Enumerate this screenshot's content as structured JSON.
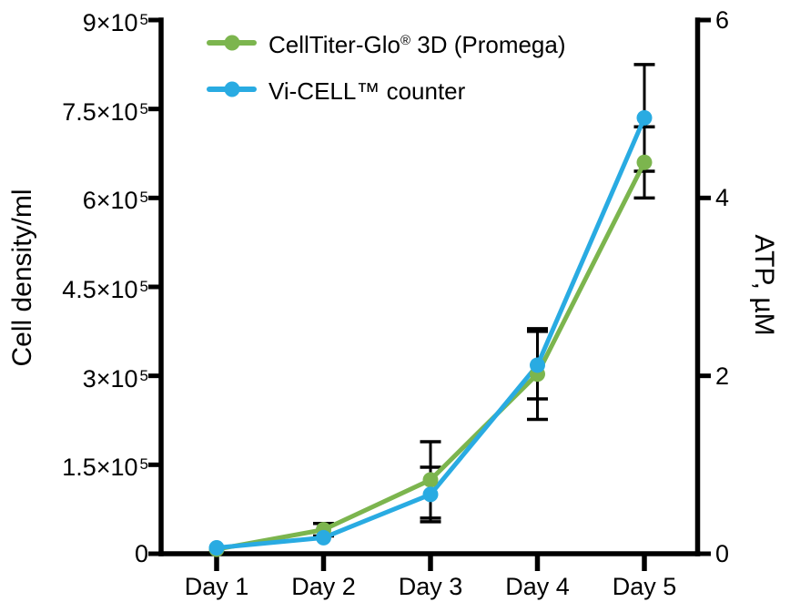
{
  "figure": {
    "background_color": "#ffffff",
    "text_color": "#000000"
  },
  "legend": {
    "items": [
      {
        "label_prefix": "CellTiter-Glo",
        "label_sup": "®",
        "label_suffix": " 3D (Promega)",
        "color": "#7CB54E"
      },
      {
        "label_prefix": "Vi-CELL™ counter",
        "label_sup": "",
        "label_suffix": "",
        "color": "#29ABE2"
      }
    ]
  },
  "chart_data": {
    "type": "line",
    "categories": [
      "Day 1",
      "Day 2",
      "Day 3",
      "Day 4",
      "Day 5"
    ],
    "left_axis": {
      "label": "Cell density/ml",
      "min": 0,
      "max": 900000,
      "ticks": [
        {
          "mantissa": "9×10",
          "exp": "5",
          "value": 900000
        },
        {
          "mantissa": "7.5×10",
          "exp": "5",
          "value": 750000
        },
        {
          "mantissa": "6×10",
          "exp": "5",
          "value": 600000
        },
        {
          "mantissa": "4.5×10",
          "exp": "5",
          "value": 450000
        },
        {
          "mantissa": "3×10",
          "exp": "5",
          "value": 300000
        },
        {
          "mantissa": "1.5×10",
          "exp": "5",
          "value": 150000
        },
        {
          "mantissa": "0",
          "exp": "",
          "value": 0
        }
      ]
    },
    "right_axis": {
      "label": "ATP, µM",
      "min": 0,
      "max": 6,
      "ticks": [
        {
          "label": "6",
          "value": 6
        },
        {
          "label": "4",
          "value": 4
        },
        {
          "label": "2",
          "value": 2
        },
        {
          "label": "0",
          "value": 0
        }
      ]
    },
    "series": [
      {
        "name": "CellTiter-Glo® 3D (Promega)",
        "axis": "right",
        "unit": "µM",
        "color": "#7CB54E",
        "values": [
          0.05,
          0.27,
          0.83,
          2.02,
          4.4
        ],
        "errors": [
          0,
          0.07,
          0.43,
          0.51,
          0.4
        ]
      },
      {
        "name": "Vi-CELL™ counter",
        "axis": "left",
        "unit": "cells/ml",
        "color": "#29ABE2",
        "values": [
          10000,
          27000,
          100000,
          318000,
          735000
        ],
        "errors": [
          0,
          0,
          46000,
          57000,
          90000
        ]
      }
    ],
    "error_bar_color": "#000000",
    "grid": false,
    "legend_position": "top-left-inside"
  }
}
